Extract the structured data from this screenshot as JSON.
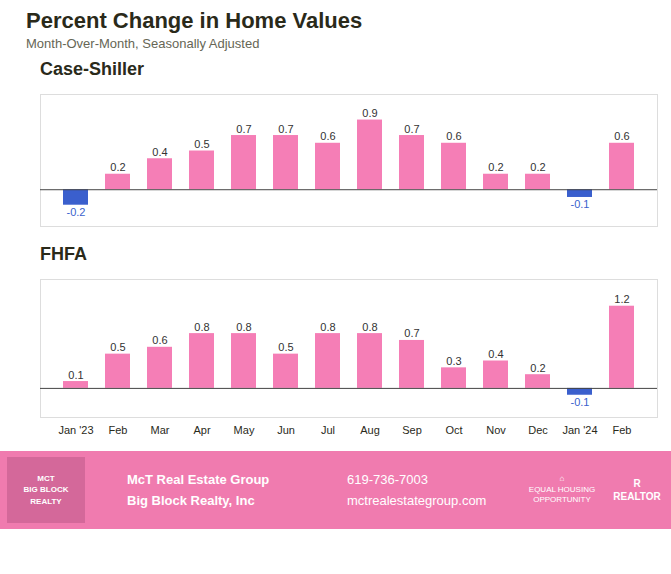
{
  "title": "Percent Change in Home Values",
  "subtitle": "Month-Over-Month, Seasonally Adjusted",
  "chart_data": [
    {
      "type": "bar",
      "title": "Case-Shiller",
      "categories": [
        "Jan '23",
        "Feb",
        "Mar",
        "Apr",
        "May",
        "Jun",
        "Jul",
        "Aug",
        "Sep",
        "Oct",
        "Nov",
        "Dec",
        "Jan '24",
        "Feb"
      ],
      "values": [
        -0.2,
        0.2,
        0.4,
        0.5,
        0.7,
        0.7,
        0.6,
        0.9,
        0.7,
        0.6,
        0.2,
        0.2,
        -0.1,
        0.6
      ],
      "colors": [
        "#3a5fcd",
        "#f57eb6",
        "#f57eb6",
        "#f57eb6",
        "#f57eb6",
        "#f57eb6",
        "#f57eb6",
        "#f57eb6",
        "#f57eb6",
        "#f57eb6",
        "#f57eb6",
        "#f57eb6",
        "#3a5fcd",
        "#f57eb6"
      ],
      "ylim": [
        -0.475,
        1.23
      ],
      "yticks": [],
      "grid": false,
      "data_labels": true,
      "tick_labels": false
    },
    {
      "type": "bar",
      "title": "FHFA",
      "categories": [
        "Jan '23",
        "Feb",
        "Mar",
        "Apr",
        "May",
        "Jun",
        "Jul",
        "Aug",
        "Sep",
        "Oct",
        "Nov",
        "Dec",
        "Jan '24",
        "Feb"
      ],
      "values": [
        0.1,
        0.5,
        0.6,
        0.8,
        0.8,
        0.5,
        0.8,
        0.8,
        0.7,
        0.3,
        0.4,
        0.2,
        -0.1,
        1.2
      ],
      "colors": [
        "#f57eb6",
        "#f57eb6",
        "#f57eb6",
        "#f57eb6",
        "#f57eb6",
        "#f57eb6",
        "#f57eb6",
        "#f57eb6",
        "#f57eb6",
        "#f57eb6",
        "#f57eb6",
        "#f57eb6",
        "#3a5fcd",
        "#f57eb6"
      ],
      "ylim": [
        -0.425,
        1.59
      ],
      "yticks": [],
      "grid": false,
      "data_labels": true,
      "tick_labels": "x"
    }
  ],
  "annotations": [
    "MCT\nBIG BLOCK\nREALTY",
    "McT Real Estate Group",
    "Big Block Realty, Inc",
    "619-736-7003",
    "mctrealestategroup.com",
    "⌂\nEQUAL HOUSING\nOPPORTUNITY",
    "R\nREALTOR"
  ]
}
